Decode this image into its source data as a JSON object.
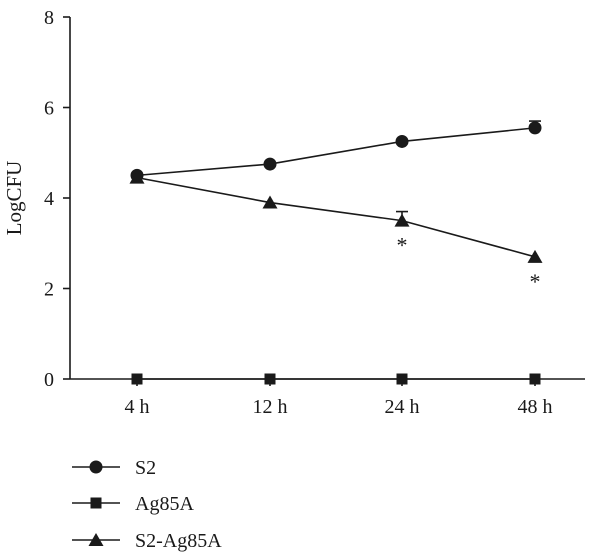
{
  "chart_data": {
    "type": "line",
    "categories": [
      "4 h",
      "12 h",
      "24 h",
      "48 h"
    ],
    "ylabel": "LogCFU",
    "xlabel": "",
    "ylim": [
      0,
      8
    ],
    "yticks": [
      0,
      2,
      4,
      6,
      8
    ],
    "grid": false,
    "legend_position": "bottom-left",
    "series": [
      {
        "name": "S2",
        "marker": "circle",
        "values": [
          4.5,
          4.75,
          5.25,
          5.55
        ],
        "errors": [
          0.05,
          0.05,
          0.05,
          0.15
        ]
      },
      {
        "name": "Ag85A",
        "marker": "square",
        "values": [
          0,
          0,
          0,
          0
        ],
        "errors": [
          0,
          0,
          0,
          0
        ]
      },
      {
        "name": "S2-Ag85A",
        "marker": "triangle",
        "values": [
          4.45,
          3.9,
          3.5,
          2.7
        ],
        "errors": [
          0.05,
          0.05,
          0.2,
          0.05
        ]
      }
    ],
    "annotations": [
      {
        "category": "24 h",
        "text": "*"
      },
      {
        "category": "48 h",
        "text": "*"
      }
    ]
  }
}
